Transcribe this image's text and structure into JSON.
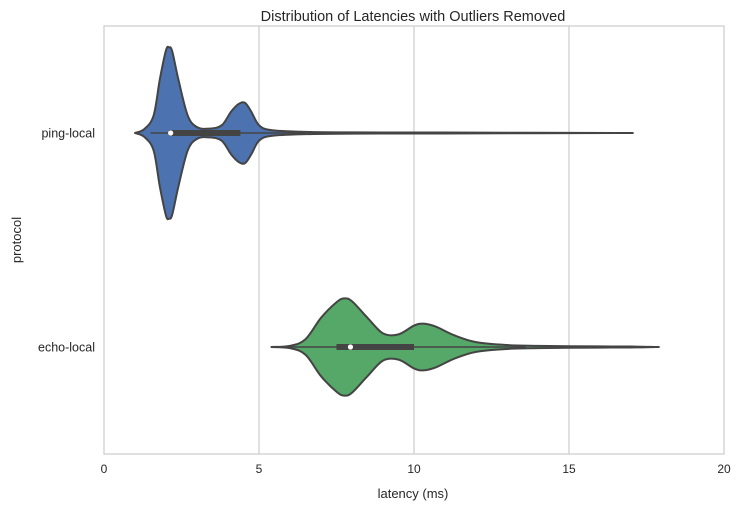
{
  "chart_data": {
    "type": "violin",
    "orientation": "horizontal",
    "title": "Distribution of Latencies with Outliers Removed",
    "xlabel": "latency (ms)",
    "ylabel": "protocol",
    "xlim": [
      0,
      20
    ],
    "xticks": [
      0,
      5,
      10,
      15,
      20
    ],
    "grid": "x",
    "categories": [
      "ping-local",
      "echo-local"
    ],
    "colors": [
      "#4c72b0",
      "#55a868"
    ],
    "series": [
      {
        "category": "ping-local",
        "min": 1.0,
        "max": 16.5,
        "q1": 2.1,
        "median": 2.15,
        "q3": 4.4,
        "whisker_low": 1.5,
        "whisker_high": 6.5,
        "density": [
          [
            1.0,
            0.0
          ],
          [
            1.3,
            0.04
          ],
          [
            1.6,
            0.18
          ],
          [
            1.8,
            0.55
          ],
          [
            2.0,
            0.85
          ],
          [
            2.1,
            0.88
          ],
          [
            2.2,
            0.84
          ],
          [
            2.4,
            0.55
          ],
          [
            2.7,
            0.18
          ],
          [
            3.0,
            0.06
          ],
          [
            3.4,
            0.045
          ],
          [
            3.8,
            0.08
          ],
          [
            4.1,
            0.22
          ],
          [
            4.35,
            0.3
          ],
          [
            4.55,
            0.31
          ],
          [
            4.75,
            0.22
          ],
          [
            5.0,
            0.08
          ],
          [
            5.4,
            0.03
          ],
          [
            6.5,
            0.012
          ],
          [
            8.0,
            0.006
          ],
          [
            12.0,
            0.004
          ],
          [
            16.5,
            0.0
          ]
        ]
      },
      {
        "category": "echo-local",
        "min": 5.4,
        "max": 17.8,
        "q1": 7.5,
        "median": 7.95,
        "q3": 10.0,
        "whisker_low": 5.6,
        "whisker_high": 13.6,
        "density": [
          [
            5.4,
            0.0
          ],
          [
            6.0,
            0.012
          ],
          [
            6.5,
            0.08
          ],
          [
            7.0,
            0.3
          ],
          [
            7.5,
            0.46
          ],
          [
            7.75,
            0.5
          ],
          [
            8.0,
            0.47
          ],
          [
            8.5,
            0.3
          ],
          [
            9.0,
            0.14
          ],
          [
            9.5,
            0.13
          ],
          [
            10.0,
            0.22
          ],
          [
            10.3,
            0.24
          ],
          [
            10.7,
            0.21
          ],
          [
            11.3,
            0.12
          ],
          [
            12.0,
            0.05
          ],
          [
            13.0,
            0.02
          ],
          [
            14.0,
            0.012
          ],
          [
            15.0,
            0.008
          ],
          [
            16.0,
            0.006
          ],
          [
            17.0,
            0.005
          ],
          [
            17.8,
            0.0
          ]
        ]
      }
    ]
  }
}
